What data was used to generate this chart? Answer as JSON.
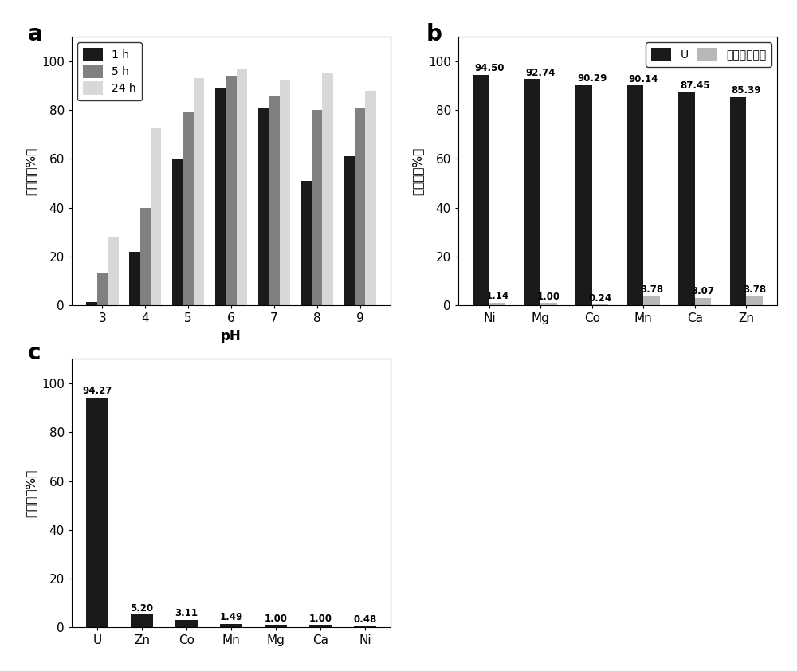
{
  "panel_a": {
    "ph_values": [
      3,
      4,
      5,
      6,
      7,
      8,
      9
    ],
    "series": {
      "1 h": [
        1.5,
        22,
        60,
        89,
        81,
        51,
        61
      ],
      "5 h": [
        13,
        40,
        79,
        94,
        86,
        80,
        81
      ],
      "24 h": [
        28,
        73,
        93,
        97,
        92,
        95,
        88
      ]
    },
    "colors": {
      "1 h": "#1a1a1a",
      "5 h": "#808080",
      "24 h": "#d8d8d8"
    },
    "ylabel": "去除率（%）",
    "xlabel": "pH",
    "ylim": [
      0,
      110
    ],
    "yticks": [
      0,
      20,
      40,
      60,
      80,
      100
    ],
    "bar_width": 0.25
  },
  "panel_b": {
    "categories": [
      "Ni",
      "Mg",
      "Co",
      "Mn",
      "Ca",
      "Zn"
    ],
    "U_values": [
      94.5,
      92.74,
      90.29,
      90.14,
      87.45,
      85.39
    ],
    "other_values": [
      1.14,
      1.0,
      0.24,
      3.78,
      3.07,
      3.78
    ],
    "U_color": "#1a1a1a",
    "other_color": "#b8b8b8",
    "legend_U": "U",
    "legend_other": "其他金属离子",
    "ylabel": "去除率（%）",
    "ylim": [
      0,
      110
    ],
    "yticks": [
      0,
      20,
      40,
      60,
      80,
      100
    ],
    "bar_width": 0.32
  },
  "panel_c": {
    "categories": [
      "U",
      "Zn",
      "Co",
      "Mn",
      "Mg",
      "Ca",
      "Ni"
    ],
    "values": [
      94.27,
      5.2,
      3.11,
      1.49,
      1.0,
      1.0,
      0.48
    ],
    "color": "#1a1a1a",
    "ylabel": "去除率（%）",
    "ylim": [
      0,
      110
    ],
    "yticks": [
      0,
      20,
      40,
      60,
      80,
      100
    ],
    "bar_width": 0.5
  },
  "panel_labels": [
    "a",
    "b",
    "c"
  ],
  "background_color": "#ffffff"
}
